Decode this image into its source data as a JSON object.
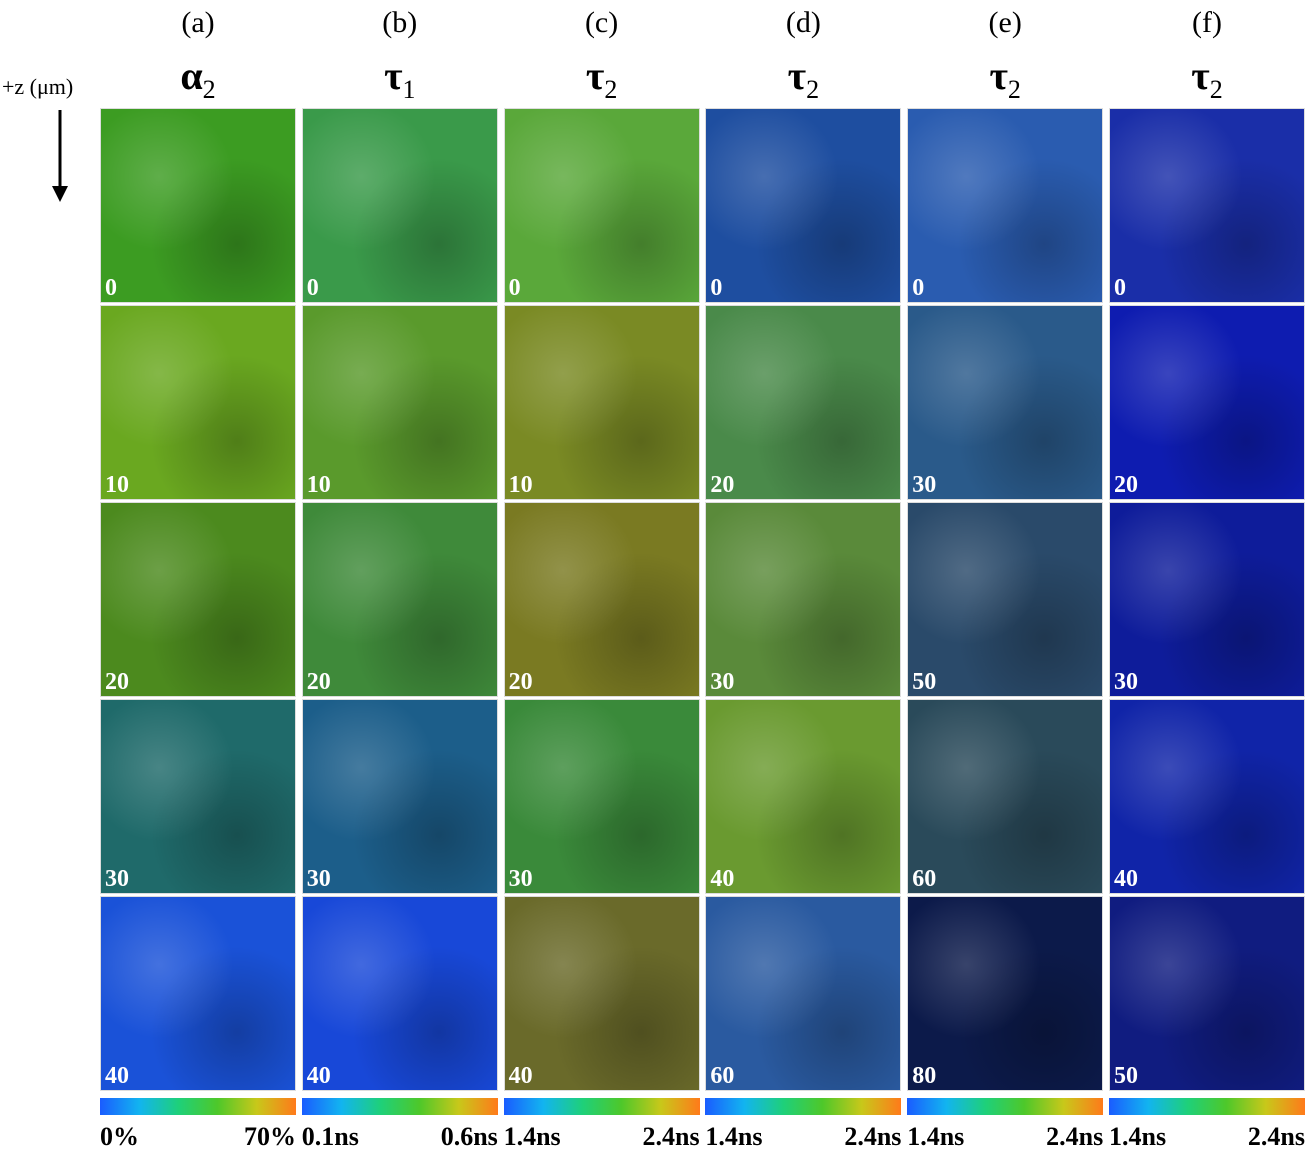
{
  "axis_label": "+z (μm)",
  "columns": [
    {
      "label": "(a)",
      "symbol": "α",
      "subscript": "2",
      "min_label": "0%",
      "max_label": "70%",
      "tiles": [
        {
          "depth": 0,
          "color": "#3c9c22"
        },
        {
          "depth": 10,
          "color": "#6aa820"
        },
        {
          "depth": 20,
          "color": "#4c8a1e"
        },
        {
          "depth": 30,
          "color": "#1f6a6a"
        },
        {
          "depth": 40,
          "color": "#1a52d8"
        }
      ]
    },
    {
      "label": "(b)",
      "symbol": "τ",
      "subscript": "1",
      "min_label": "0.1ns",
      "max_label": "0.6ns",
      "tiles": [
        {
          "depth": 0,
          "color": "#3a9a4a"
        },
        {
          "depth": 10,
          "color": "#5a9a2c"
        },
        {
          "depth": 20,
          "color": "#3f8a3a"
        },
        {
          "depth": 30,
          "color": "#1c5e8a"
        },
        {
          "depth": 40,
          "color": "#1848d8"
        }
      ]
    },
    {
      "label": "(c)",
      "symbol": "τ",
      "subscript": "2",
      "min_label": "1.4ns",
      "max_label": "2.4ns",
      "tiles": [
        {
          "depth": 0,
          "color": "#5aa83a"
        },
        {
          "depth": 10,
          "color": "#7a8a24"
        },
        {
          "depth": 20,
          "color": "#7a7a22"
        },
        {
          "depth": 30,
          "color": "#3a8a3a"
        },
        {
          "depth": 40,
          "color": "#6a6a2a"
        }
      ]
    },
    {
      "label": "(d)",
      "symbol": "τ",
      "subscript": "2",
      "min_label": "1.4ns",
      "max_label": "2.4ns",
      "tiles": [
        {
          "depth": 0,
          "color": "#1e4ea0"
        },
        {
          "depth": 20,
          "color": "#4a8a4a"
        },
        {
          "depth": 30,
          "color": "#5a8a3a"
        },
        {
          "depth": 40,
          "color": "#6a9a30"
        },
        {
          "depth": 60,
          "color": "#2a5aa0"
        }
      ]
    },
    {
      "label": "(e)",
      "symbol": "τ",
      "subscript": "2",
      "min_label": "1.4ns",
      "max_label": "2.4ns",
      "tiles": [
        {
          "depth": 0,
          "color": "#2a5cb0"
        },
        {
          "depth": 30,
          "color": "#2a5a8a"
        },
        {
          "depth": 50,
          "color": "#2a4a6a"
        },
        {
          "depth": 60,
          "color": "#2a4a5a"
        },
        {
          "depth": 80,
          "color": "#0c1a4a"
        }
      ]
    },
    {
      "label": "(f)",
      "symbol": "τ",
      "subscript": "2",
      "min_label": "1.4ns",
      "max_label": "2.4ns",
      "tiles": [
        {
          "depth": 0,
          "color": "#1a2ea8"
        },
        {
          "depth": 20,
          "color": "#0e1cb0"
        },
        {
          "depth": 30,
          "color": "#0e1c9a"
        },
        {
          "depth": 40,
          "color": "#1024a8"
        },
        {
          "depth": 50,
          "color": "#101c80"
        }
      ]
    }
  ]
}
